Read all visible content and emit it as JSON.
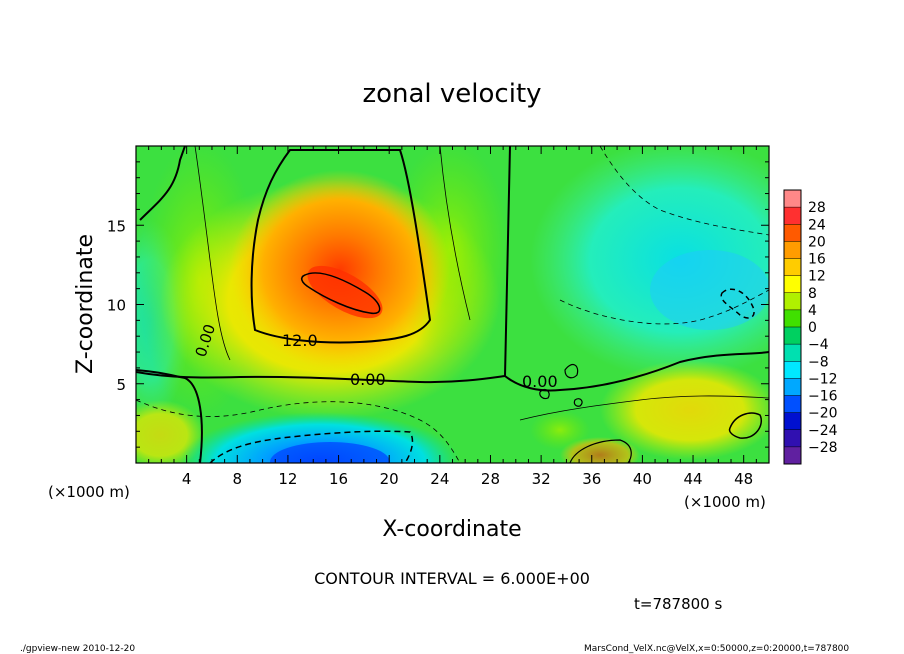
{
  "chart_data": {
    "type": "heatmap",
    "title": "zonal velocity",
    "xlabel": "X-coordinate",
    "ylabel": "Z-coordinate",
    "x_unit": "(×1000 m)",
    "y_unit": "(×1000 m)",
    "xlim": [
      0,
      50
    ],
    "ylim": [
      0,
      20
    ],
    "x_ticks": [
      "4",
      "8",
      "12",
      "16",
      "20",
      "24",
      "28",
      "32",
      "36",
      "40",
      "44",
      "48"
    ],
    "y_ticks": [
      "5",
      "10",
      "15"
    ],
    "colorbar_ticks": [
      "28",
      "24",
      "20",
      "16",
      "12",
      "8",
      "4",
      "0",
      "−4",
      "−8",
      "−12",
      "−16",
      "−20",
      "−24",
      "−28"
    ],
    "colorbar_colors": [
      "#ff8888",
      "#ff3030",
      "#ff5a00",
      "#ff9c00",
      "#ffcc00",
      "#ffff00",
      "#b0f000",
      "#40e000",
      "#00d060",
      "#00e0b0",
      "#00e8ff",
      "#00a8ff",
      "#0050ff",
      "#0010d0",
      "#3010b0",
      "#6020a0"
    ],
    "contour_labels": [
      "0.00",
      "12.0",
      "0.00",
      "0.00"
    ],
    "contour_interval_text": "CONTOUR INTERVAL = 6.000E+00",
    "time_text": "t=787800 s",
    "footer_left": "./gpview-new   2010-12-20",
    "footer_right": "MarsCond_VelX.nc@VelX,x=0:50000,z=0:20000,t=787800"
  }
}
